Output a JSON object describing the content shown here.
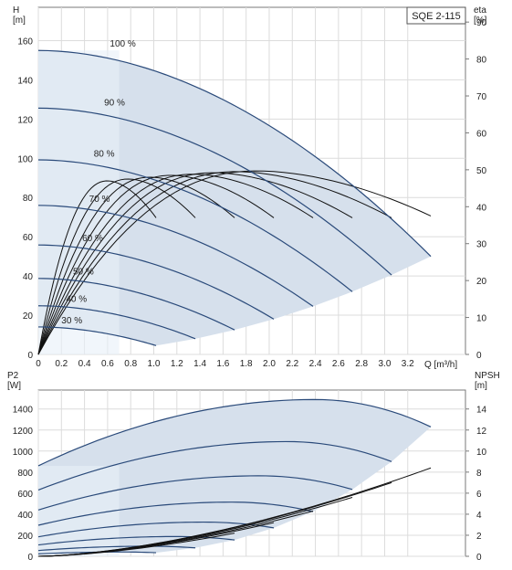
{
  "chart_data": [
    {
      "type": "line",
      "title": "SQE 2-115",
      "xlabel": "Q [m³/h]",
      "ylabel_left": "H\n[m]",
      "ylabel_right": "eta\n[%]",
      "x_ticks": [
        0,
        0.2,
        0.4,
        0.6,
        0.8,
        1.0,
        1.2,
        1.4,
        1.6,
        1.8,
        2.0,
        2.2,
        2.4,
        2.6,
        2.8,
        3.0,
        3.2
      ],
      "x_tick_labels": [
        "0",
        "0.2",
        "0.4",
        "0.6",
        "0.8",
        "1.0",
        "1.2",
        "1.4",
        "1.6",
        "1.8",
        "2.0",
        "2.2",
        "2.4",
        "2.6",
        "2.8",
        "3.0",
        "3.2"
      ],
      "xlim": [
        0,
        3.7
      ],
      "ylim_left": [
        0,
        177
      ],
      "y_ticks_left": [
        0,
        20,
        40,
        60,
        80,
        100,
        120,
        140,
        160
      ],
      "ylim_right": [
        0,
        94
      ],
      "y_ticks_right": [
        0,
        10,
        20,
        30,
        40,
        50,
        60,
        70,
        80,
        90
      ],
      "grid": true,
      "speed_labels": [
        "100 %",
        "90 %",
        "80 %",
        "70 %",
        "60 %",
        "50 %",
        "40 %",
        "30 %"
      ],
      "series": [
        {
          "label": "100 %",
          "shut_off_head": 155,
          "max_flow": 3.4,
          "end_head": 50
        },
        {
          "label": "90 %",
          "shut_off_head": 125.6,
          "max_flow": 3.06,
          "end_head": 40.5
        },
        {
          "label": "80 %",
          "shut_off_head": 99.2,
          "max_flow": 2.72,
          "end_head": 32
        },
        {
          "label": "70 %",
          "shut_off_head": 76,
          "max_flow": 2.38,
          "end_head": 24.5
        },
        {
          "label": "60 %",
          "shut_off_head": 55.8,
          "max_flow": 2.04,
          "end_head": 18
        },
        {
          "label": "50 %",
          "shut_off_head": 38.75,
          "max_flow": 1.7,
          "end_head": 12.5
        },
        {
          "label": "40 %",
          "shut_off_head": 24.8,
          "max_flow": 1.36,
          "end_head": 8
        },
        {
          "label": "30 %",
          "shut_off_head": 14,
          "max_flow": 1.02,
          "end_head": 4.5
        }
      ],
      "efficiency_curves": [
        {
          "max_flow": 3.4,
          "peak": 49.7,
          "peak_flow": 1.9,
          "end_eta": 37.5
        },
        {
          "max_flow": 3.06,
          "peak": 49.5,
          "peak_flow": 1.72,
          "end_eta": 37
        },
        {
          "max_flow": 2.72,
          "peak": 49.2,
          "peak_flow": 1.52,
          "end_eta": 37
        },
        {
          "max_flow": 2.38,
          "peak": 48.8,
          "peak_flow": 1.34,
          "end_eta": 37
        },
        {
          "max_flow": 2.04,
          "peak": 48.5,
          "peak_flow": 1.15,
          "end_eta": 37
        },
        {
          "max_flow": 1.7,
          "peak": 48,
          "peak_flow": 0.97,
          "end_eta": 37
        },
        {
          "max_flow": 1.36,
          "peak": 47.5,
          "peak_flow": 0.78,
          "end_eta": 37
        },
        {
          "max_flow": 1.02,
          "peak": 47,
          "peak_flow": 0.6,
          "end_eta": 37
        }
      ],
      "accent": "#2a4a7a",
      "band_fill": "#d6e0ec",
      "light_fill": "#e8f0f8"
    },
    {
      "type": "line",
      "title": "",
      "ylabel_left": "P2\n[W]",
      "ylabel_right": "NPSH\n[m]",
      "xlim": [
        0,
        3.7
      ],
      "ylim_left": [
        0,
        1580
      ],
      "y_ticks_left": [
        0,
        200,
        400,
        600,
        800,
        1000,
        1200,
        1400
      ],
      "ylim_right": [
        0,
        15.8
      ],
      "y_ticks_right": [
        0,
        2,
        4,
        6,
        8,
        10,
        12,
        14
      ],
      "grid": true,
      "power_series": [
        {
          "label": "100 %",
          "p_start": 860,
          "p_peak": 1490,
          "peak_flow": 2.4,
          "max_flow": 3.4,
          "p_end": 1230
        },
        {
          "label": "90 %",
          "p_start": 630,
          "p_peak": 1090,
          "peak_flow": 2.16,
          "max_flow": 3.06,
          "p_end": 900
        },
        {
          "label": "80 %",
          "p_start": 440,
          "p_peak": 765,
          "peak_flow": 1.92,
          "max_flow": 2.72,
          "p_end": 635
        },
        {
          "label": "70 %",
          "p_start": 295,
          "p_peak": 515,
          "peak_flow": 1.68,
          "max_flow": 2.38,
          "p_end": 425
        },
        {
          "label": "60 %",
          "p_start": 185,
          "p_peak": 325,
          "peak_flow": 1.44,
          "max_flow": 2.04,
          "p_end": 270
        },
        {
          "label": "50 %",
          "p_start": 108,
          "p_peak": 188,
          "peak_flow": 1.2,
          "max_flow": 1.7,
          "p_end": 155
        },
        {
          "label": "40 %",
          "p_start": 55,
          "p_peak": 96,
          "peak_flow": 0.96,
          "max_flow": 1.36,
          "p_end": 80
        },
        {
          "label": "30 %",
          "p_start": 23,
          "p_peak": 41,
          "peak_flow": 0.72,
          "max_flow": 1.02,
          "p_end": 34
        }
      ],
      "npsh_curves": [
        {
          "max_flow": 3.4,
          "npsh_end": 8.4
        },
        {
          "max_flow": 3.06,
          "npsh_end": 7.0
        },
        {
          "max_flow": 2.72,
          "npsh_end": 5.6
        },
        {
          "max_flow": 2.38,
          "npsh_end": 4.3
        },
        {
          "max_flow": 2.04,
          "npsh_end": 3.2
        },
        {
          "max_flow": 1.7,
          "npsh_end": 2.2
        }
      ]
    }
  ]
}
